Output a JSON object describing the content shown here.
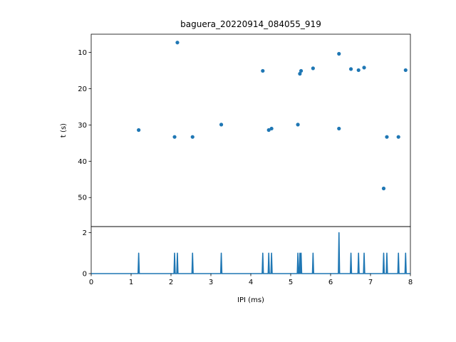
{
  "chart_data": [
    {
      "type": "scatter",
      "title": "baguera_20220914_084055_919",
      "xlabel": "",
      "ylabel": "t (s)",
      "xlim": [
        0,
        8
      ],
      "ylim": [
        58,
        5
      ],
      "y_inverted": true,
      "yticks": [
        10,
        20,
        30,
        40,
        50
      ],
      "color": "#1f77b4",
      "points": [
        {
          "x": 1.19,
          "y": 31.4
        },
        {
          "x": 2.09,
          "y": 33.3
        },
        {
          "x": 2.16,
          "y": 7.3
        },
        {
          "x": 2.54,
          "y": 33.3
        },
        {
          "x": 3.26,
          "y": 29.9
        },
        {
          "x": 4.3,
          "y": 15.1
        },
        {
          "x": 4.45,
          "y": 31.4
        },
        {
          "x": 4.52,
          "y": 31.0
        },
        {
          "x": 5.18,
          "y": 29.9
        },
        {
          "x": 5.23,
          "y": 15.9
        },
        {
          "x": 5.26,
          "y": 15.1
        },
        {
          "x": 5.56,
          "y": 14.4
        },
        {
          "x": 6.21,
          "y": 10.4
        },
        {
          "x": 6.21,
          "y": 31.0
        },
        {
          "x": 6.51,
          "y": 14.6
        },
        {
          "x": 6.7,
          "y": 14.9
        },
        {
          "x": 6.84,
          "y": 14.2
        },
        {
          "x": 7.33,
          "y": 47.5
        },
        {
          "x": 7.41,
          "y": 33.3
        },
        {
          "x": 7.7,
          "y": 33.3
        },
        {
          "x": 7.88,
          "y": 14.9
        }
      ]
    },
    {
      "type": "line",
      "title": "",
      "xlabel": "IPI (ms)",
      "ylabel": "",
      "xlim": [
        0,
        8
      ],
      "ylim": [
        0,
        2.3
      ],
      "xticks": [
        0,
        1,
        2,
        3,
        4,
        5,
        6,
        7,
        8
      ],
      "yticks": [
        0,
        2
      ],
      "color": "#1f77b4",
      "spikes": [
        {
          "x": 1.19,
          "y": 1
        },
        {
          "x": 2.09,
          "y": 1
        },
        {
          "x": 2.16,
          "y": 1
        },
        {
          "x": 2.54,
          "y": 1
        },
        {
          "x": 3.26,
          "y": 1
        },
        {
          "x": 4.3,
          "y": 1
        },
        {
          "x": 4.45,
          "y": 1
        },
        {
          "x": 4.52,
          "y": 1
        },
        {
          "x": 5.18,
          "y": 1
        },
        {
          "x": 5.23,
          "y": 1
        },
        {
          "x": 5.26,
          "y": 1
        },
        {
          "x": 5.56,
          "y": 1
        },
        {
          "x": 6.21,
          "y": 2
        },
        {
          "x": 6.51,
          "y": 1
        },
        {
          "x": 6.7,
          "y": 1
        },
        {
          "x": 6.84,
          "y": 1
        },
        {
          "x": 7.33,
          "y": 1
        },
        {
          "x": 7.41,
          "y": 1
        },
        {
          "x": 7.7,
          "y": 1
        },
        {
          "x": 7.88,
          "y": 1
        }
      ]
    }
  ]
}
